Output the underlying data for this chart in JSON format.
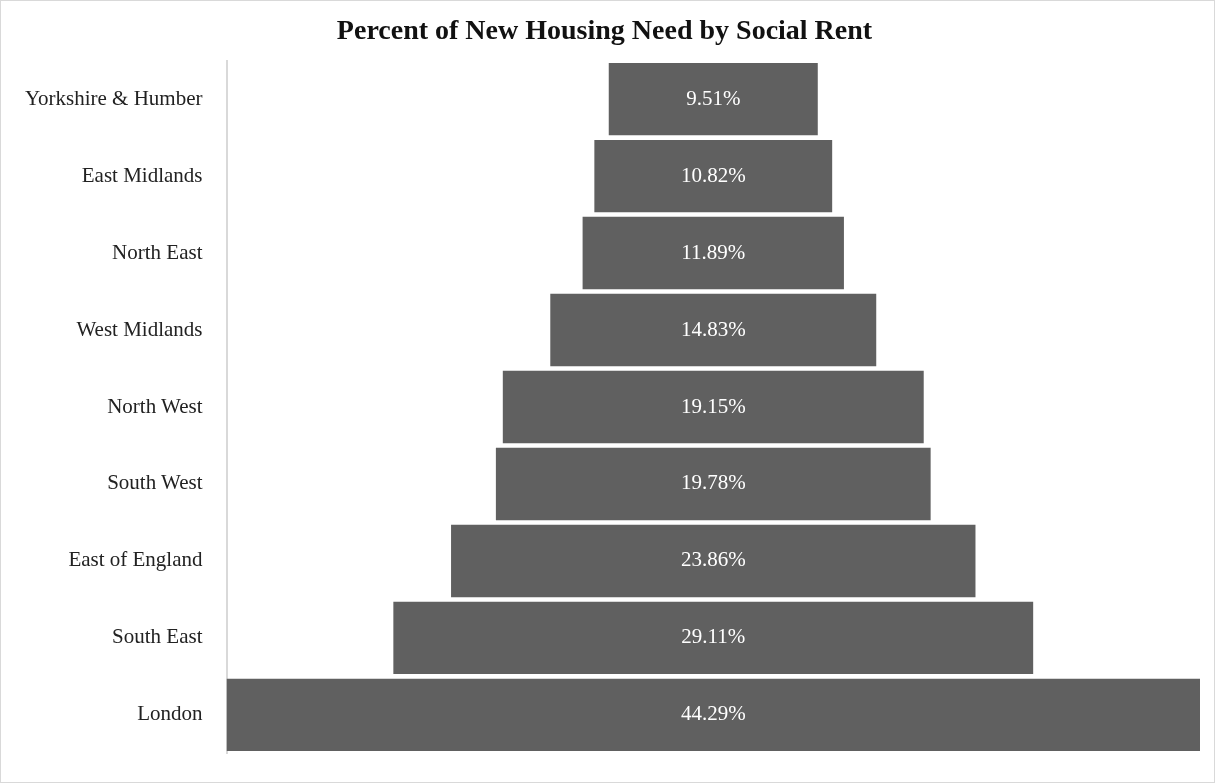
{
  "chart_data": {
    "type": "other",
    "title": "Percent of New Housing Need by Social Rent",
    "categories": [
      "Yorkshire & Humber",
      "East Midlands",
      "North East",
      "West Midlands",
      "North West",
      "South West",
      "East of England",
      "South East",
      "London"
    ],
    "values": [
      9.51,
      10.82,
      11.89,
      14.83,
      19.15,
      19.78,
      23.86,
      29.11,
      44.29
    ],
    "value_labels": [
      "9.51%",
      "10.82%",
      "11.89%",
      "14.83%",
      "19.15%",
      "19.78%",
      "23.86%",
      "29.11%",
      "44.29%"
    ],
    "color": "#606060"
  }
}
